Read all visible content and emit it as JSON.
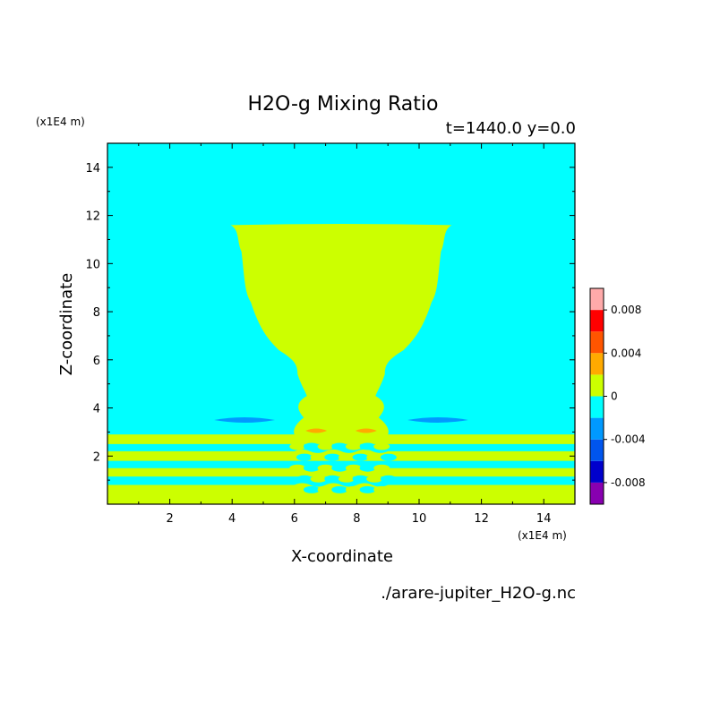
{
  "chart_data": {
    "type": "heatmap",
    "title": "H2O-g Mixing Ratio",
    "subtitle": "t=1440.0 y=0.0",
    "xlabel": "X-coordinate",
    "ylabel": "Z-coordinate",
    "x_unit": "(x1E4 m)",
    "y_unit": "(x1E4 m)",
    "xlim": [
      0,
      15
    ],
    "ylim": [
      0,
      15
    ],
    "x_ticks": [
      2,
      4,
      6,
      8,
      10,
      12,
      14
    ],
    "y_ticks": [
      2,
      4,
      6,
      8,
      10,
      12,
      14
    ],
    "x_tick_labels": [
      "2",
      "4",
      "6",
      "8",
      "10",
      "12",
      "14"
    ],
    "y_tick_labels": [
      "2",
      "4",
      "6",
      "8",
      "10",
      "12",
      "14"
    ],
    "background_value_color": "#00ffff",
    "colorbar": {
      "levels": [
        -0.01,
        -0.008,
        -0.006,
        -0.004,
        -0.002,
        0,
        0.002,
        0.004,
        0.006,
        0.008,
        0.01
      ],
      "colors": [
        "#8800b0",
        "#0000cc",
        "#0055ee",
        "#0099ff",
        "#00ffff",
        "#ccff00",
        "#ffaa00",
        "#ff5500",
        "#ff0000",
        "#ffaaaa"
      ],
      "labels": [
        "0.008",
        "0.004",
        "0",
        "-0.004",
        "-0.008"
      ],
      "label_values": [
        0.008,
        0.004,
        0,
        -0.004,
        -0.008
      ]
    },
    "regions": [
      {
        "name": "plume",
        "value_band": "0 to 0.002",
        "color": "#ccff00",
        "outline": [
          [
            3.95,
            11.6
          ],
          [
            4.3,
            10.5
          ],
          [
            4.6,
            8.4
          ],
          [
            5.5,
            6.4
          ],
          [
            6.1,
            5.4
          ],
          [
            6.4,
            4.5
          ],
          [
            6.3,
            3.6
          ],
          [
            6.05,
            2.8
          ],
          [
            8.95,
            2.8
          ],
          [
            8.7,
            3.6
          ],
          [
            8.6,
            4.5
          ],
          [
            8.9,
            5.4
          ],
          [
            9.5,
            6.4
          ],
          [
            10.4,
            8.4
          ],
          [
            10.7,
            10.5
          ],
          [
            11.05,
            11.6
          ]
        ]
      },
      {
        "name": "negative-lens-left",
        "value_band": "-0.004 to -0.002",
        "color": "#0099ff",
        "center": [
          4.4,
          3.5
        ]
      },
      {
        "name": "negative-lens-right",
        "value_band": "-0.004 to -0.002",
        "color": "#0099ff",
        "center": [
          10.6,
          3.5
        ]
      },
      {
        "name": "positive-spot-left",
        "value_band": "0.002 to 0.004",
        "color": "#ffaa00",
        "center": [
          6.7,
          3.05
        ]
      },
      {
        "name": "positive-spot-right",
        "value_band": "0.002 to 0.004",
        "color": "#ffaa00",
        "center": [
          8.3,
          3.05
        ]
      }
    ],
    "stripes": [
      {
        "z_bottom": 2.5,
        "z_top": 2.9
      },
      {
        "z_bottom": 1.8,
        "z_top": 2.2
      },
      {
        "z_bottom": 1.15,
        "z_top": 1.5
      },
      {
        "z_bottom": 0,
        "z_top": 0.8
      }
    ]
  },
  "footer": {
    "filename": "./arare-jupiter_H2O-g.nc"
  }
}
